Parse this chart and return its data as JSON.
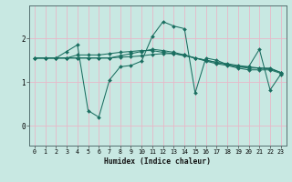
{
  "xlabel": "Humidex (Indice chaleur)",
  "bg_color": "#c8e8e2",
  "line_color": "#1a6e60",
  "xlim": [
    -0.5,
    23.5
  ],
  "ylim": [
    -0.45,
    2.75
  ],
  "yticks": [
    0,
    1,
    2
  ],
  "xticks": [
    0,
    1,
    2,
    3,
    4,
    5,
    6,
    7,
    8,
    9,
    10,
    11,
    12,
    13,
    14,
    15,
    16,
    17,
    18,
    19,
    20,
    21,
    22,
    23
  ],
  "series": [
    [
      1.55,
      1.55,
      1.55,
      1.7,
      1.85,
      0.35,
      0.2,
      1.05,
      1.35,
      1.38,
      1.48,
      2.05,
      2.38,
      2.28,
      2.22,
      0.75,
      1.55,
      1.5,
      1.4,
      1.35,
      1.35,
      1.75,
      0.82,
      1.18
    ],
    [
      1.55,
      1.55,
      1.55,
      1.55,
      1.55,
      1.55,
      1.55,
      1.55,
      1.6,
      1.65,
      1.7,
      1.75,
      1.72,
      1.68,
      1.62,
      1.55,
      1.48,
      1.42,
      1.38,
      1.32,
      1.28,
      1.28,
      1.28,
      1.2
    ],
    [
      1.55,
      1.55,
      1.55,
      1.55,
      1.62,
      1.62,
      1.62,
      1.65,
      1.68,
      1.7,
      1.72,
      1.72,
      1.68,
      1.65,
      1.6,
      1.55,
      1.5,
      1.45,
      1.42,
      1.38,
      1.35,
      1.32,
      1.32,
      1.22
    ],
    [
      1.55,
      1.55,
      1.55,
      1.55,
      1.55,
      1.55,
      1.55,
      1.55,
      1.57,
      1.58,
      1.6,
      1.63,
      1.65,
      1.65,
      1.62,
      1.55,
      1.5,
      1.45,
      1.4,
      1.35,
      1.32,
      1.32,
      1.3,
      1.22
    ]
  ],
  "xlabel_fontsize": 5.8,
  "tick_fontsize": 4.8,
  "ytick_fontsize": 5.5,
  "marker_size": 2.0,
  "line_width": 0.75
}
